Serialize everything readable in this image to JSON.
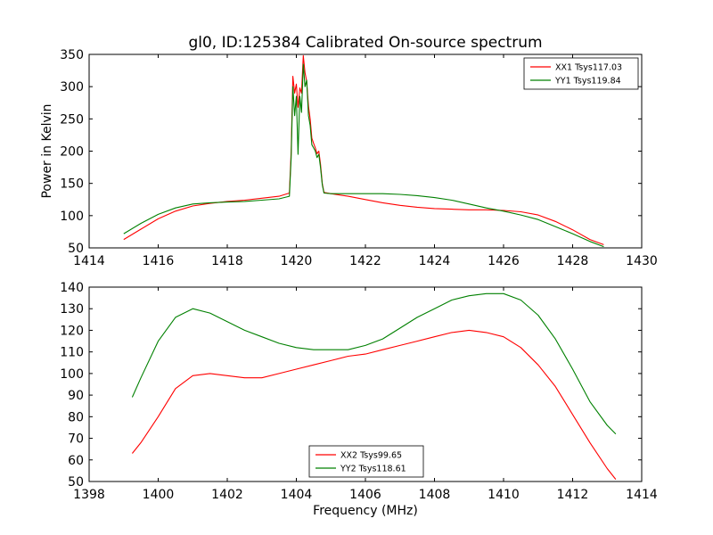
{
  "figure": {
    "title": "gl0, ID:125384 Calibrated On-source spectrum"
  },
  "chart_data": [
    {
      "type": "line",
      "title": "gl0, ID:125384 Calibrated On-source spectrum",
      "xlabel": "",
      "ylabel": "Power in Kelvin",
      "xlim": [
        1414,
        1430
      ],
      "ylim": [
        50,
        350
      ],
      "xticks": [
        1414,
        1416,
        1418,
        1420,
        1422,
        1424,
        1426,
        1428,
        1430
      ],
      "yticks": [
        50,
        100,
        150,
        200,
        250,
        300,
        350
      ],
      "grid": false,
      "legend_position": "top-right",
      "series": [
        {
          "name": "XX1 Tsys117.03",
          "color": "#ff0000",
          "x": [
            1415.0,
            1415.5,
            1416.0,
            1416.5,
            1417.0,
            1417.5,
            1418.0,
            1418.5,
            1419.0,
            1419.5,
            1419.8,
            1419.85,
            1419.9,
            1419.95,
            1420.0,
            1420.05,
            1420.1,
            1420.15,
            1420.2,
            1420.25,
            1420.3,
            1420.35,
            1420.4,
            1420.45,
            1420.5,
            1420.55,
            1420.6,
            1420.65,
            1420.7,
            1420.75,
            1420.8,
            1421.0,
            1421.5,
            1422.0,
            1422.5,
            1423.0,
            1423.5,
            1424.0,
            1424.5,
            1425.0,
            1425.5,
            1426.0,
            1426.5,
            1427.0,
            1427.5,
            1428.0,
            1428.5,
            1428.9
          ],
          "y": [
            63,
            79,
            95,
            107,
            115,
            119,
            122,
            124,
            127,
            130,
            135,
            200,
            316,
            290,
            304,
            268,
            298,
            290,
            348,
            322,
            308,
            270,
            250,
            220,
            212,
            205,
            196,
            200,
            180,
            150,
            136,
            134,
            130,
            125,
            120,
            116,
            113,
            111,
            110,
            109,
            109,
            108,
            106,
            101,
            91,
            78,
            63,
            55
          ]
        },
        {
          "name": "YY1 Tsys119.84",
          "color": "#008000",
          "x": [
            1415.0,
            1415.5,
            1416.0,
            1416.5,
            1417.0,
            1417.5,
            1418.0,
            1418.5,
            1419.0,
            1419.5,
            1419.8,
            1419.85,
            1419.9,
            1419.95,
            1420.0,
            1420.05,
            1420.1,
            1420.15,
            1420.2,
            1420.25,
            1420.3,
            1420.35,
            1420.4,
            1420.45,
            1420.5,
            1420.55,
            1420.6,
            1420.65,
            1420.7,
            1420.75,
            1420.8,
            1421.0,
            1421.5,
            1422.0,
            1422.5,
            1423.0,
            1423.5,
            1424.0,
            1424.5,
            1425.0,
            1425.5,
            1426.0,
            1426.5,
            1427.0,
            1427.5,
            1428.0,
            1428.5,
            1428.9
          ],
          "y": [
            72,
            88,
            102,
            112,
            118,
            120,
            121,
            122,
            124,
            126,
            130,
            190,
            300,
            255,
            285,
            195,
            285,
            260,
            335,
            300,
            310,
            255,
            240,
            210,
            205,
            200,
            190,
            195,
            175,
            148,
            135,
            134,
            134,
            134,
            134,
            133,
            131,
            128,
            124,
            118,
            112,
            107,
            101,
            94,
            83,
            72,
            60,
            52
          ]
        }
      ]
    },
    {
      "type": "line",
      "title": "",
      "xlabel": "Frequency (MHz)",
      "ylabel": "",
      "xlim": [
        1398,
        1414
      ],
      "ylim": [
        50,
        140
      ],
      "xticks": [
        1398,
        1400,
        1402,
        1404,
        1406,
        1408,
        1410,
        1412,
        1414
      ],
      "yticks": [
        50,
        60,
        70,
        80,
        90,
        100,
        110,
        120,
        130,
        140
      ],
      "grid": false,
      "legend_position": "bottom-center",
      "series": [
        {
          "name": "XX2 Tsys99.65",
          "color": "#ff0000",
          "x": [
            1399.25,
            1399.5,
            1400.0,
            1400.5,
            1401.0,
            1401.5,
            1402.0,
            1402.5,
            1403.0,
            1403.5,
            1404.0,
            1404.5,
            1405.0,
            1405.5,
            1406.0,
            1406.5,
            1407.0,
            1407.5,
            1408.0,
            1408.5,
            1409.0,
            1409.5,
            1410.0,
            1410.5,
            1411.0,
            1411.5,
            1412.0,
            1412.5,
            1413.0,
            1413.25
          ],
          "y": [
            63,
            68,
            80,
            93,
            99,
            100,
            99,
            98,
            98,
            100,
            102,
            104,
            106,
            108,
            109,
            111,
            113,
            115,
            117,
            119,
            120,
            119,
            117,
            112,
            104,
            94,
            81,
            68,
            56,
            51
          ]
        },
        {
          "name": "YY2 Tsys118.61",
          "color": "#008000",
          "x": [
            1399.25,
            1399.5,
            1400.0,
            1400.5,
            1401.0,
            1401.5,
            1402.0,
            1402.5,
            1403.0,
            1403.5,
            1404.0,
            1404.5,
            1405.0,
            1405.5,
            1406.0,
            1406.5,
            1407.0,
            1407.5,
            1408.0,
            1408.5,
            1409.0,
            1409.5,
            1410.0,
            1410.5,
            1411.0,
            1411.5,
            1412.0,
            1412.5,
            1413.0,
            1413.25
          ],
          "y": [
            89,
            98,
            115,
            126,
            130,
            128,
            124,
            120,
            117,
            114,
            112,
            111,
            111,
            111,
            113,
            116,
            121,
            126,
            130,
            134,
            136,
            137,
            137,
            134,
            127,
            116,
            102,
            87,
            76,
            72
          ]
        }
      ]
    }
  ]
}
